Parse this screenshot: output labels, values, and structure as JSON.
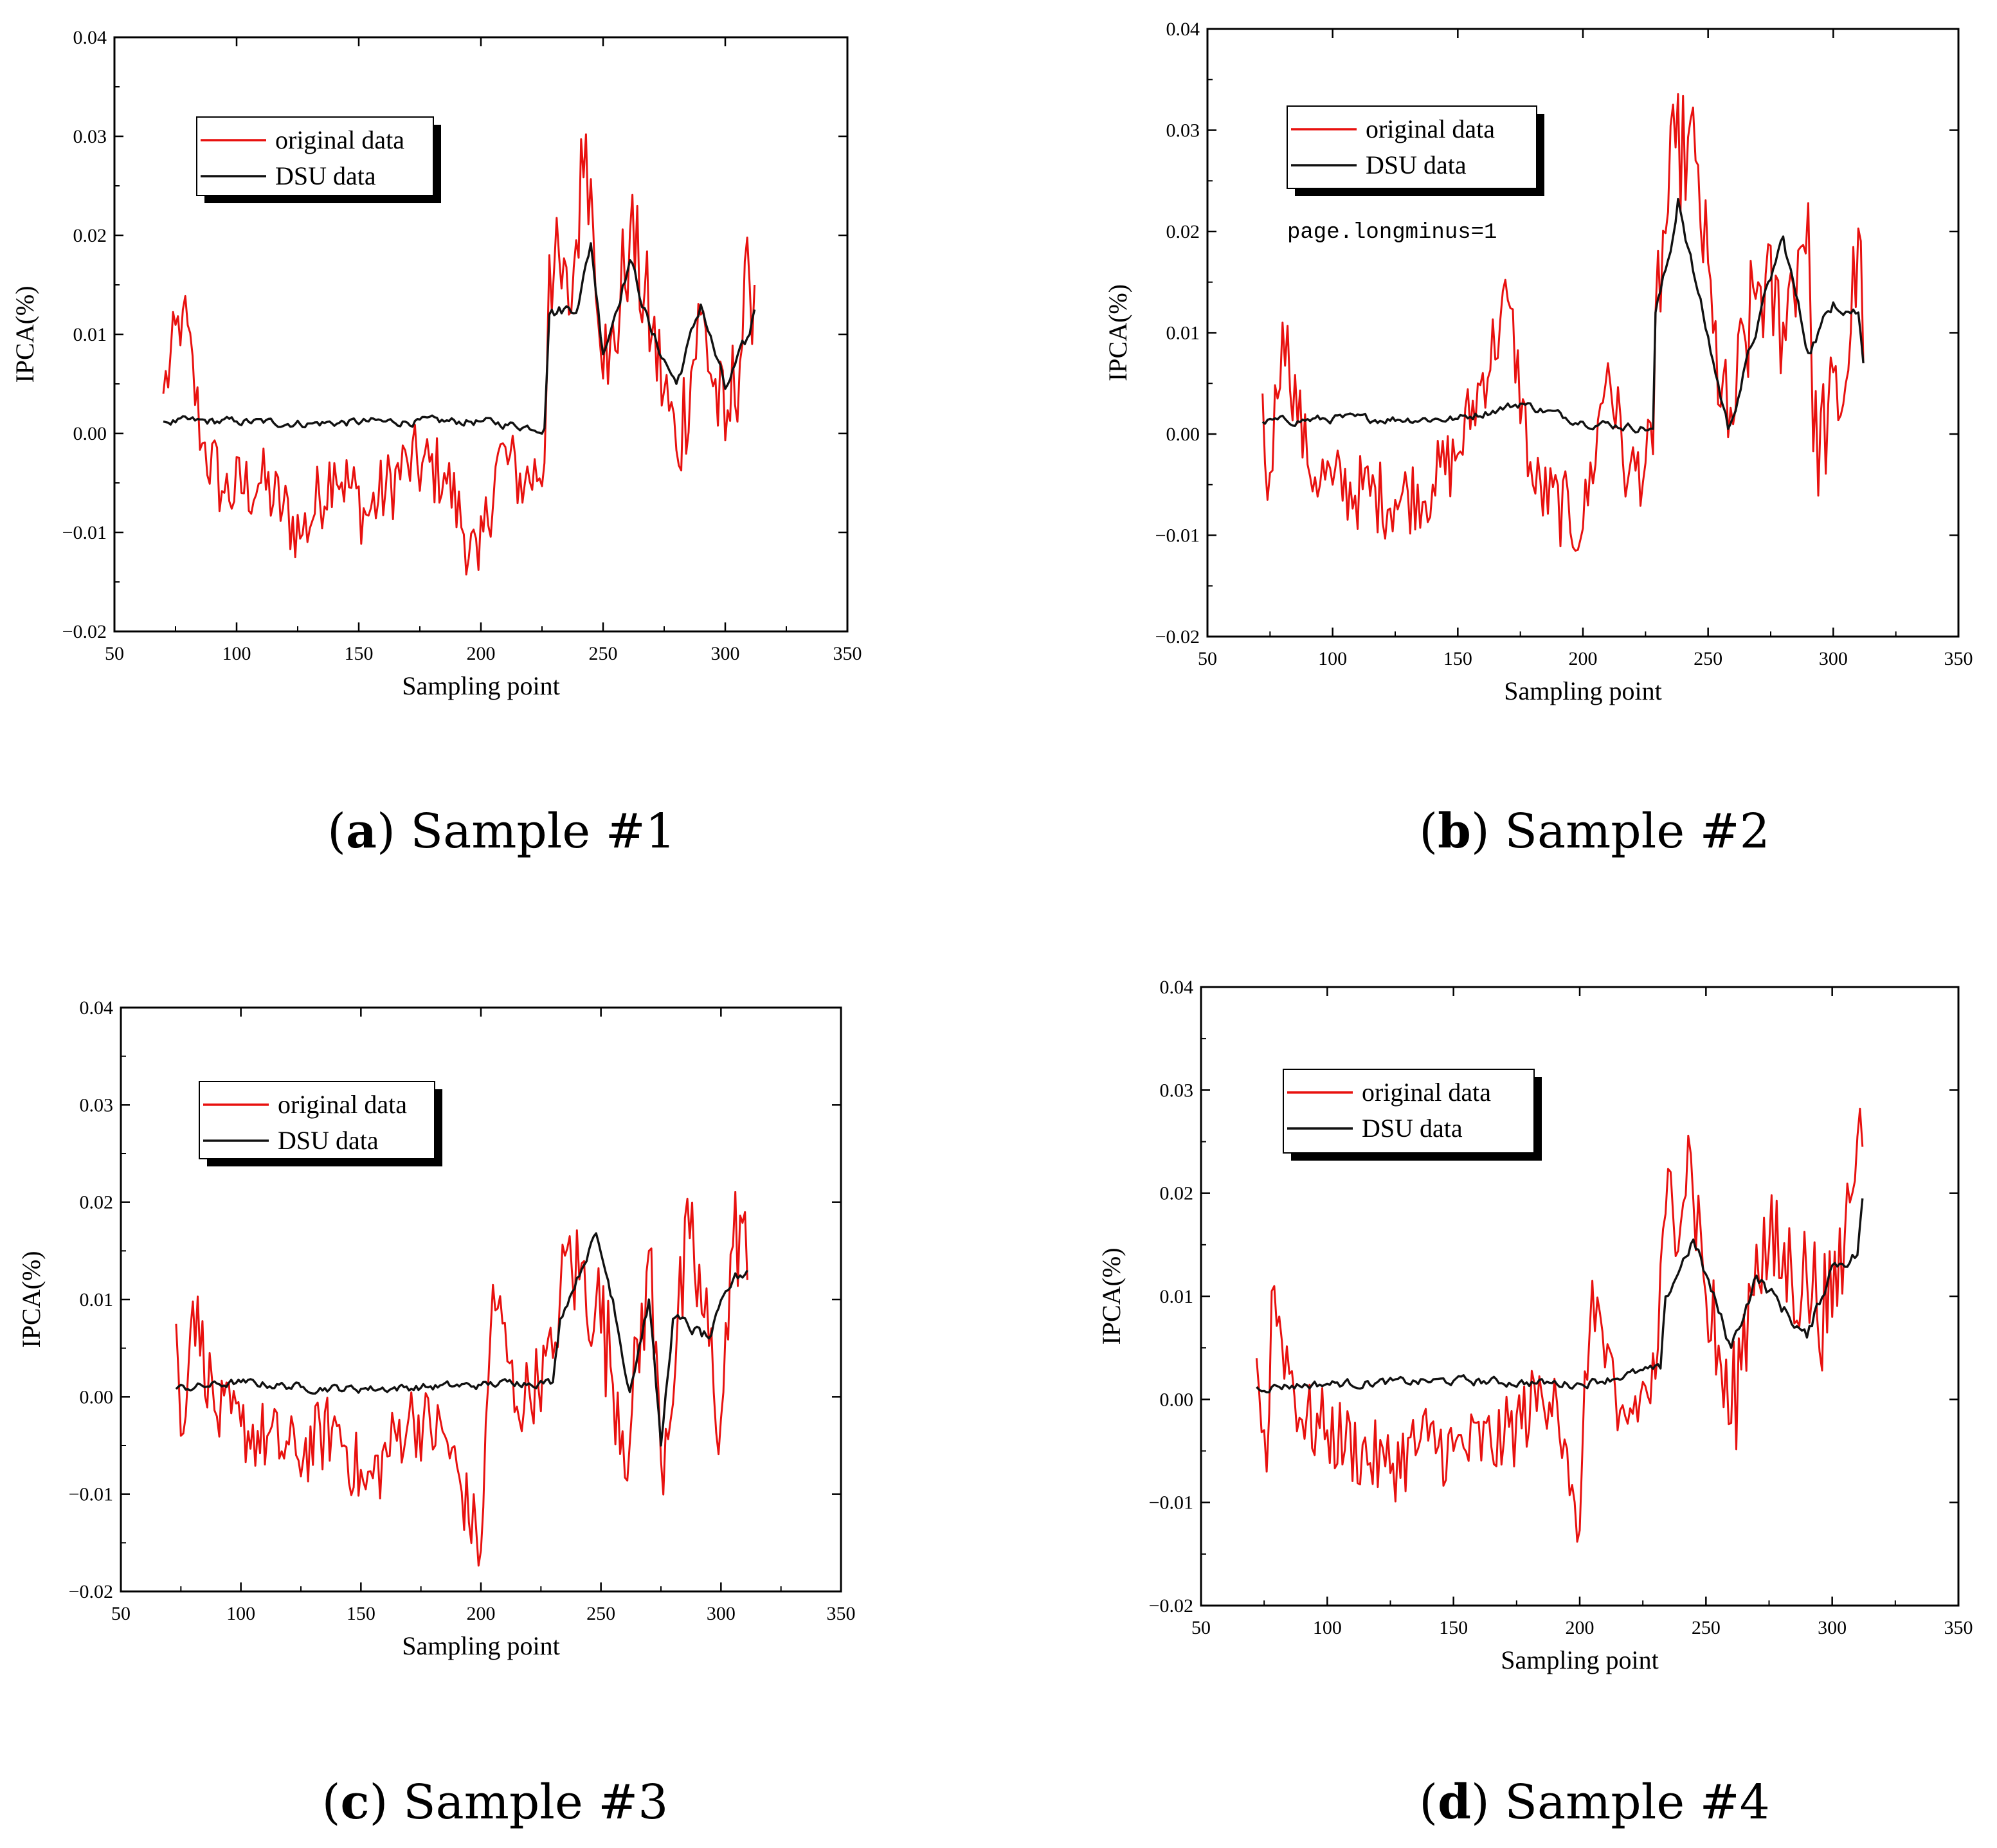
{
  "colors": {
    "original": "#e8110f",
    "dsu": "#111111",
    "axis": "#000000"
  },
  "chart_data": [
    {
      "type": "line",
      "panel": "a",
      "caption": {
        "letter": "a",
        "text": "Sample #1"
      },
      "xlabel": "Sampling point",
      "ylabel": "IPCA(%)",
      "xlim": [
        50,
        350
      ],
      "ylim": [
        -0.02,
        0.04
      ],
      "xticks": [
        "50",
        "100",
        "150",
        "200",
        "250",
        "300",
        "350"
      ],
      "yticks": [
        "−0.02",
        "−0.01",
        "0.00",
        "0.01",
        "0.02",
        "0.03",
        "0.04"
      ],
      "legend": [
        "original data",
        "DSU data"
      ],
      "x_range": [
        70,
        312
      ],
      "series": [
        {
          "name": "original data",
          "key": [
            [
              70,
              0.004
            ],
            [
              78,
              0.0125
            ],
            [
              86,
              -0.001
            ],
            [
              95,
              -0.006
            ],
            [
              110,
              -0.005
            ],
            [
              127,
              -0.0102
            ],
            [
              140,
              -0.003
            ],
            [
              153,
              -0.0082
            ],
            [
              170,
              -0.003
            ],
            [
              185,
              -0.004
            ],
            [
              199,
              -0.0138
            ],
            [
              207,
              -0.002
            ],
            [
              218,
              -0.005
            ],
            [
              226,
              -0.003
            ],
            [
              228,
              0.018
            ],
            [
              236,
              0.012
            ],
            [
              243,
              0.0302
            ],
            [
              252,
              0.005
            ],
            [
              261,
              0.0203
            ],
            [
              270,
              0.01
            ],
            [
              280,
              -0.0017
            ],
            [
              290,
              0.012
            ],
            [
              300,
              -0.0007
            ],
            [
              310,
              0.015
            ],
            [
              312,
              0.015
            ]
          ]
        },
        {
          "name": "DSU data",
          "key": [
            [
              70,
              0.0012
            ],
            [
              100,
              0.0012
            ],
            [
              130,
              0.001
            ],
            [
              160,
              0.0012
            ],
            [
              200,
              0.0012
            ],
            [
              226,
              0.0005
            ],
            [
              228,
              0.012
            ],
            [
              240,
              0.013
            ],
            [
              245,
              0.0192
            ],
            [
              250,
              0.008
            ],
            [
              261,
              0.0175
            ],
            [
              270,
              0.01
            ],
            [
              280,
              0.005
            ],
            [
              290,
              0.013
            ],
            [
              300,
              0.0045
            ],
            [
              310,
              0.01
            ],
            [
              312,
              0.0125
            ]
          ]
        }
      ]
    },
    {
      "type": "line",
      "panel": "b",
      "caption": {
        "letter": "b",
        "text": "Sample #2"
      },
      "xlabel": "Sampling point",
      "ylabel": "IPCA(%)",
      "xlim": [
        50,
        350
      ],
      "ylim": [
        -0.02,
        0.04
      ],
      "xticks": [
        "50",
        "100",
        "150",
        "200",
        "250",
        "300",
        "350"
      ],
      "yticks": [
        "−0.02",
        "−0.01",
        "0.00",
        "0.01",
        "0.02",
        "0.03",
        "0.04"
      ],
      "legend": [
        "original data",
        "DSU data"
      ],
      "annotation": "page.longminus=1",
      "x_range": [
        72,
        312
      ],
      "series": [
        {
          "name": "original data",
          "key": [
            [
              72,
              0.004
            ],
            [
              74,
              -0.0065
            ],
            [
              80,
              0.011
            ],
            [
              90,
              -0.003
            ],
            [
              100,
              -0.005
            ],
            [
              125,
              -0.0065
            ],
            [
              140,
              -0.005
            ],
            [
              150,
              -0.002
            ],
            [
              170,
              0.0132
            ],
            [
              180,
              -0.005
            ],
            [
              200,
              -0.0093
            ],
            [
              210,
              0.007
            ],
            [
              218,
              -0.0045
            ],
            [
              228,
              -0.002
            ],
            [
              229,
              0.012
            ],
            [
              237,
              0.0283
            ],
            [
              245,
              0.027
            ],
            [
              252,
              0.01
            ],
            [
              258,
              -0.0003
            ],
            [
              270,
              0.015
            ],
            [
              280,
              0.011
            ],
            [
              290,
              0.0228
            ],
            [
              292,
              -0.0017
            ],
            [
              305,
              0.005
            ],
            [
              310,
              0.0203
            ],
            [
              312,
              0.007
            ]
          ]
        },
        {
          "name": "DSU data",
          "key": [
            [
              72,
              0.0012
            ],
            [
              100,
              0.0015
            ],
            [
              150,
              0.0015
            ],
            [
              175,
              0.003
            ],
            [
              200,
              0.0012
            ],
            [
              228,
              0.0005
            ],
            [
              229,
              0.012
            ],
            [
              235,
              0.018
            ],
            [
              238,
              0.0232
            ],
            [
              245,
              0.015
            ],
            [
              258,
              0.0005
            ],
            [
              270,
              0.011
            ],
            [
              280,
              0.0195
            ],
            [
              290,
              0.008
            ],
            [
              300,
              0.013
            ],
            [
              310,
              0.012
            ],
            [
              312,
              0.007
            ]
          ]
        }
      ]
    },
    {
      "type": "line",
      "panel": "c",
      "caption": {
        "letter": "c",
        "text": "Sample #3"
      },
      "xlabel": "Sampling point",
      "ylabel": "IPCA(%)",
      "xlim": [
        50,
        350
      ],
      "ylim": [
        -0.02,
        0.04
      ],
      "xticks": [
        "50",
        "100",
        "150",
        "200",
        "250",
        "300",
        "350"
      ],
      "yticks": [
        "−0.02",
        "−0.01",
        "0.00",
        "0.01",
        "0.02",
        "0.03",
        "0.04"
      ],
      "legend": [
        "original data",
        "DSU data"
      ],
      "x_range": [
        73,
        311
      ],
      "series": [
        {
          "name": "original data",
          "key": [
            [
              73,
              0.0075
            ],
            [
              75,
              -0.004
            ],
            [
              80,
              0.0098
            ],
            [
              90,
              -0.002
            ],
            [
              100,
              -0.003
            ],
            [
              123,
              -0.006
            ],
            [
              140,
              -0.003
            ],
            [
              152,
              -0.0095
            ],
            [
              170,
              -0.002
            ],
            [
              185,
              -0.004
            ],
            [
              200,
              -0.0158
            ],
            [
              205,
              0.0115
            ],
            [
              215,
              -0.001
            ],
            [
              230,
              0.004
            ],
            [
              235,
              0.0145
            ],
            [
              248,
              0.01
            ],
            [
              262,
              -0.0048
            ],
            [
              270,
              0.015
            ],
            [
              275,
              -0.0065
            ],
            [
              287,
              0.0163
            ],
            [
              300,
              -0.0023
            ],
            [
              305,
              0.0155
            ],
            [
              310,
              0.019
            ],
            [
              311,
              0.012
            ]
          ]
        },
        {
          "name": "DSU data",
          "key": [
            [
              73,
              0.0008
            ],
            [
              100,
              0.0015
            ],
            [
              125,
              0.001
            ],
            [
              150,
              0.0008
            ],
            [
              200,
              0.0012
            ],
            [
              215,
              0.0015
            ],
            [
              230,
              0.0015
            ],
            [
              233,
              0.008
            ],
            [
              248,
              0.0168
            ],
            [
              255,
              0.01
            ],
            [
              262,
              0.0005
            ],
            [
              270,
              0.01
            ],
            [
              275,
              -0.005
            ],
            [
              280,
              0.008
            ],
            [
              295,
              0.006
            ],
            [
              305,
              0.012
            ],
            [
              311,
              0.013
            ]
          ]
        }
      ]
    },
    {
      "type": "line",
      "panel": "d",
      "caption": {
        "letter": "d",
        "text": "Sample #4"
      },
      "xlabel": "Sampling point",
      "ylabel": "IPCA(%)",
      "xlim": [
        50,
        350
      ],
      "ylim": [
        -0.02,
        0.04
      ],
      "xticks": [
        "50",
        "100",
        "150",
        "200",
        "250",
        "300",
        "350"
      ],
      "yticks": [
        "−0.02",
        "−0.01",
        "0.00",
        "0.01",
        "0.02",
        "0.03",
        "0.04"
      ],
      "legend": [
        "original data",
        "DSU data"
      ],
      "x_range": [
        72,
        312
      ],
      "series": [
        {
          "name": "original data",
          "key": [
            [
              72,
              0.004
            ],
            [
              76,
              -0.007
            ],
            [
              78,
              0.0105
            ],
            [
              90,
              -0.002
            ],
            [
              100,
              -0.003
            ],
            [
              123,
              -0.0065
            ],
            [
              140,
              -0.004
            ],
            [
              150,
              -0.005
            ],
            [
              170,
              -0.004
            ],
            [
              190,
              0.002
            ],
            [
              196,
              -0.0093
            ],
            [
              199,
              -0.0138
            ],
            [
              205,
              0.0115
            ],
            [
              215,
              -0.003
            ],
            [
              230,
              0.002
            ],
            [
              234,
              0.018
            ],
            [
              244,
              0.0238
            ],
            [
              250,
              0.01
            ],
            [
              260,
              -0.0023
            ],
            [
              270,
              0.015
            ],
            [
              290,
              0.0115
            ],
            [
              300,
              0.008
            ],
            [
              305,
              0.016
            ],
            [
              310,
              0.0255
            ],
            [
              312,
              0.0245
            ]
          ]
        },
        {
          "name": "DSU data",
          "key": [
            [
              72,
              0.0012
            ],
            [
              100,
              0.0015
            ],
            [
              150,
              0.0018
            ],
            [
              200,
              0.0015
            ],
            [
              232,
              0.003
            ],
            [
              234,
              0.01
            ],
            [
              245,
              0.0155
            ],
            [
              260,
              0.005
            ],
            [
              270,
              0.012
            ],
            [
              290,
              0.006
            ],
            [
              300,
              0.013
            ],
            [
              310,
              0.014
            ],
            [
              312,
              0.0195
            ]
          ]
        }
      ]
    }
  ]
}
